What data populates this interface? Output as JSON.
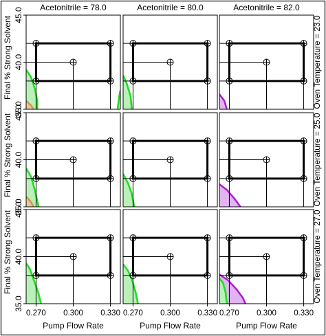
{
  "chart_data": {
    "type": "contour-overlay-grid",
    "columns": {
      "label": "Acetonitrile",
      "values": [
        "78.0",
        "80.0",
        "82.0"
      ],
      "titles": [
        "Acetonitrile = 78.0",
        "Acetonitrile = 80.0",
        "Acetonitrile = 82.0"
      ]
    },
    "rows": {
      "label": "Oven Temperature",
      "values": [
        "23.0",
        "25.0",
        "27.0"
      ],
      "titles": [
        "Oven Temperature = 23.0",
        "Oven Temperature = 25.0",
        "Oven Temperature = 27.0"
      ]
    },
    "xlabel": "Pump Flow Rate",
    "ylabel": "Final % Strong Solvent",
    "xlim": [
      0.262,
      0.338
    ],
    "ylim": [
      35.0,
      45.0
    ],
    "xticks": [
      "0.270",
      "0.300",
      "0.330"
    ],
    "yticks": [
      "35.0",
      "40.0",
      "45.0"
    ],
    "design_points": {
      "corners": [
        [
          0.27,
          38.0
        ],
        [
          0.33,
          38.0
        ],
        [
          0.33,
          42.0
        ],
        [
          0.27,
          42.0
        ]
      ],
      "center": [
        0.3,
        40.0
      ]
    },
    "colors": {
      "green_region": "#22dd22",
      "green_fill": "#b8f0b8",
      "orange_region": "#cc9955",
      "orange_fill": "#e8c89a",
      "purple_region": "#aa22cc",
      "purple_fill": "#e2b4f2",
      "design_lines": "#000000",
      "frame": "#000000"
    },
    "regions": [
      {
        "row": 0,
        "col": 0,
        "color": "green",
        "x": [
          0.262,
          0.266,
          0.269,
          0.271,
          0.271,
          0.262
        ],
        "y": [
          39.2,
          38.4,
          37.2,
          35.9,
          35.0,
          35.0
        ]
      },
      {
        "row": 0,
        "col": 0,
        "color": "orange",
        "x": [
          0.262,
          0.266,
          0.268,
          0.262
        ],
        "y": [
          35.9,
          35.4,
          35.0,
          35.0
        ]
      },
      {
        "row": 0,
        "col": 0,
        "color": "green",
        "x": [
          0.338,
          0.337,
          0.3357,
          0.338
        ],
        "y": [
          37.0,
          36.3,
          35.0,
          35.0
        ]
      },
      {
        "row": 0,
        "col": 1,
        "color": "green",
        "x": [
          0.262,
          0.265,
          0.268,
          0.269,
          0.262
        ],
        "y": [
          38.6,
          37.7,
          36.4,
          35.0,
          35.0
        ]
      },
      {
        "row": 0,
        "col": 2,
        "color": "purple",
        "x": [
          0.262,
          0.266,
          0.268,
          0.262
        ],
        "y": [
          36.6,
          35.9,
          35.0,
          35.0
        ]
      },
      {
        "row": 1,
        "col": 0,
        "color": "green",
        "x": [
          0.262,
          0.266,
          0.269,
          0.272,
          0.262
        ],
        "y": [
          39.1,
          38.2,
          36.8,
          35.0,
          35.0
        ]
      },
      {
        "row": 1,
        "col": 0,
        "color": "orange",
        "x": [
          0.262,
          0.266,
          0.268,
          0.262
        ],
        "y": [
          36.1,
          35.5,
          35.0,
          35.0
        ]
      },
      {
        "row": 1,
        "col": 1,
        "color": "green",
        "x": [
          0.262,
          0.266,
          0.269,
          0.271,
          0.262
        ],
        "y": [
          38.5,
          37.5,
          36.4,
          35.0,
          35.0
        ]
      },
      {
        "row": 1,
        "col": 2,
        "color": "purple",
        "x": [
          0.262,
          0.268,
          0.274,
          0.279,
          0.262
        ],
        "y": [
          37.4,
          36.8,
          35.9,
          35.0,
          35.0
        ]
      },
      {
        "row": 2,
        "col": 0,
        "color": "green",
        "x": [
          0.262,
          0.265,
          0.268,
          0.272,
          0.274,
          0.262
        ],
        "y": [
          39.3,
          38.7,
          37.6,
          36.1,
          35.0,
          35.0
        ]
      },
      {
        "row": 2,
        "col": 1,
        "color": "green",
        "x": [
          0.262,
          0.266,
          0.269,
          0.272,
          0.274,
          0.262
        ],
        "y": [
          39.2,
          38.5,
          37.6,
          36.3,
          35.0,
          35.0
        ]
      },
      {
        "row": 2,
        "col": 2,
        "color": "purple",
        "x": [
          0.262,
          0.269,
          0.276,
          0.281,
          0.283,
          0.262
        ],
        "y": [
          38.1,
          37.5,
          36.5,
          35.6,
          35.0,
          35.0
        ]
      },
      {
        "row": 2,
        "col": 2,
        "color": "green",
        "x": [
          0.262,
          0.265,
          0.267,
          0.268,
          0.262
        ],
        "y": [
          37.7,
          37.2,
          36.2,
          35.0,
          35.0
        ]
      }
    ]
  }
}
